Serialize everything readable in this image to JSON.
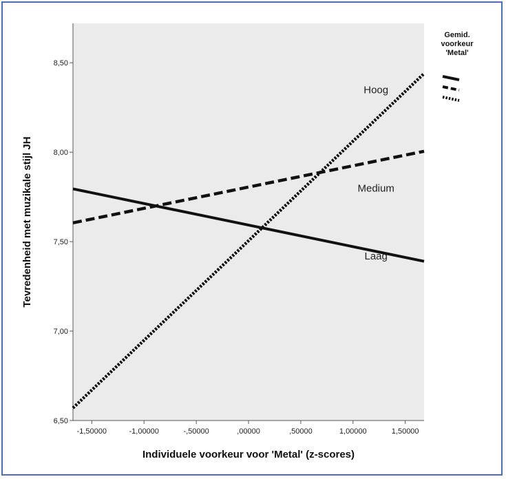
{
  "colors": {
    "frame": "#4a6fb5",
    "plot_background": "#ebebeb",
    "line": "#111111"
  },
  "chart_data": {
    "type": "line",
    "title": "",
    "xlabel": "Individuele voorkeur voor 'Metal' (z-scores)",
    "ylabel": "Tevredenheid met muzikale stijl JH",
    "xlim": [
      -1.68,
      1.68
    ],
    "ylim": [
      6.5,
      8.72
    ],
    "x_ticks": [
      -1.5,
      -1.0,
      -0.5,
      0.0,
      0.5,
      1.0,
      1.5
    ],
    "x_tick_labels": [
      "-1,50000",
      "-1,00000",
      "-,50000",
      ",00000",
      ",50000",
      "1,00000",
      "1,50000"
    ],
    "y_ticks": [
      6.5,
      7.0,
      7.5,
      8.0,
      8.5
    ],
    "y_tick_labels": [
      "6,50",
      "7,00",
      "7,50",
      "8,00",
      "8,50"
    ],
    "grid": false,
    "legend_title": [
      "Gemid.",
      "voorkeur",
      "'Metal'"
    ],
    "legend_position": "top-right outside",
    "series": [
      {
        "name": "Laag",
        "style": "solid",
        "x": [
          -1.68,
          1.68
        ],
        "y": [
          7.795,
          7.39
        ],
        "label_at": [
          1.22,
          7.4
        ]
      },
      {
        "name": "Medium",
        "style": "dashed",
        "x": [
          -1.68,
          1.68
        ],
        "y": [
          7.605,
          8.005
        ],
        "label_at": [
          1.22,
          7.78
        ]
      },
      {
        "name": "Hoog",
        "style": "dotted",
        "x": [
          -1.68,
          1.68
        ],
        "y": [
          6.57,
          8.44
        ],
        "label_at": [
          1.22,
          8.33
        ]
      }
    ]
  }
}
